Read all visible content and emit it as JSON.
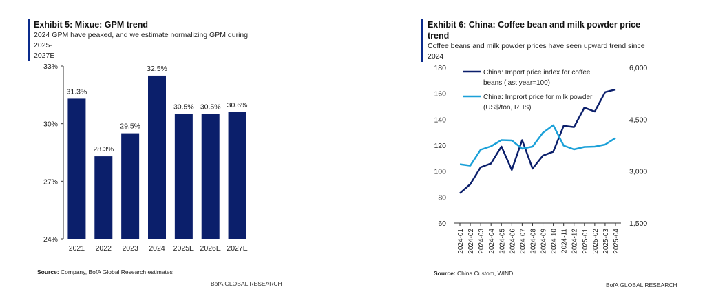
{
  "exhibit5": {
    "title": "Exhibit 5: Mixue: GPM trend",
    "subtitle": "2024 GPM have peaked, and we estimate normalizing GPM during 2025-2027E",
    "subtitle_line1": "2024 GPM have peaked, and we estimate normalizing GPM during 2025-",
    "subtitle_line2": "2027E",
    "source_label": "Source:",
    "source_text": " Company, BofA Global Research estimates",
    "footer": "BofA GLOBAL RESEARCH"
  },
  "exhibit6": {
    "title": "Exhibit 6: China: Coffee bean and milk powder price trend",
    "title_line1": "Exhibit 6: China: Coffee bean and milk powder price",
    "title_line2": "trend",
    "subtitle": "Coffee beans and milk powder prices have seen upward trend since 2024",
    "source_label": "Source:",
    "source_text": " China Custom, WIND",
    "footer": "BofA GLOBAL RESEARCH"
  },
  "chart_data": [
    {
      "type": "bar",
      "title": "Exhibit 5: Mixue: GPM trend",
      "categories": [
        "2021",
        "2022",
        "2023",
        "2024",
        "2025E",
        "2026E",
        "2027E"
      ],
      "values": [
        31.3,
        28.3,
        29.5,
        32.5,
        30.5,
        30.5,
        30.6
      ],
      "data_labels": [
        "31.3%",
        "28.3%",
        "29.5%",
        "32.5%",
        "30.5%",
        "30.5%",
        "30.6%"
      ],
      "ylim": [
        24,
        33
      ],
      "yticks": [
        24,
        27,
        30,
        33
      ],
      "ytick_labels": [
        "24%",
        "27%",
        "30%",
        "33%"
      ],
      "bar_color": "#0b1f6b",
      "grid": false,
      "xlabel": "",
      "ylabel": ""
    },
    {
      "type": "line",
      "title": "Exhibit 6: China: Coffee bean and milk powder price trend",
      "x": [
        "2024-01",
        "2024-02",
        "2024-03",
        "2024-04",
        "2024-05",
        "2024-06",
        "2024-07",
        "2024-08",
        "2024-09",
        "2024-10",
        "2024-11",
        "2024-12",
        "2025-01",
        "2025-02",
        "2025-03",
        "2025-04"
      ],
      "ylim_left": [
        60,
        180
      ],
      "yticks_left": [
        60,
        80,
        100,
        120,
        140,
        160,
        180
      ],
      "ylim_right": [
        1500,
        6000
      ],
      "yticks_right": [
        1500,
        3000,
        4500,
        6000
      ],
      "ytick_labels_right": [
        "1,500",
        "3,000",
        "4,500",
        "6,000"
      ],
      "legend_position": "top-left",
      "grid": false,
      "series": [
        {
          "name": "China: Import price index for coffee beans (last year=100)",
          "legend_line1": "China: Import price index for coffee",
          "legend_line2": "beans (last year=100)",
          "axis": "left",
          "color": "#0b1f6b",
          "values": [
            83,
            90,
            103,
            106,
            119,
            101,
            124,
            102,
            112,
            115,
            135,
            134,
            149,
            146,
            161,
            163
          ]
        },
        {
          "name": "China: Imprort price for milk powder (US$/ton, RHS)",
          "legend_line1": "China: Imprort price for milk powder",
          "legend_line2": "(US$/ton, RHS)",
          "axis": "right",
          "color": "#1aa0d8",
          "values": [
            3200,
            3160,
            3620,
            3720,
            3900,
            3890,
            3650,
            3710,
            4110,
            4330,
            3740,
            3630,
            3700,
            3710,
            3770,
            3960
          ]
        }
      ]
    }
  ]
}
